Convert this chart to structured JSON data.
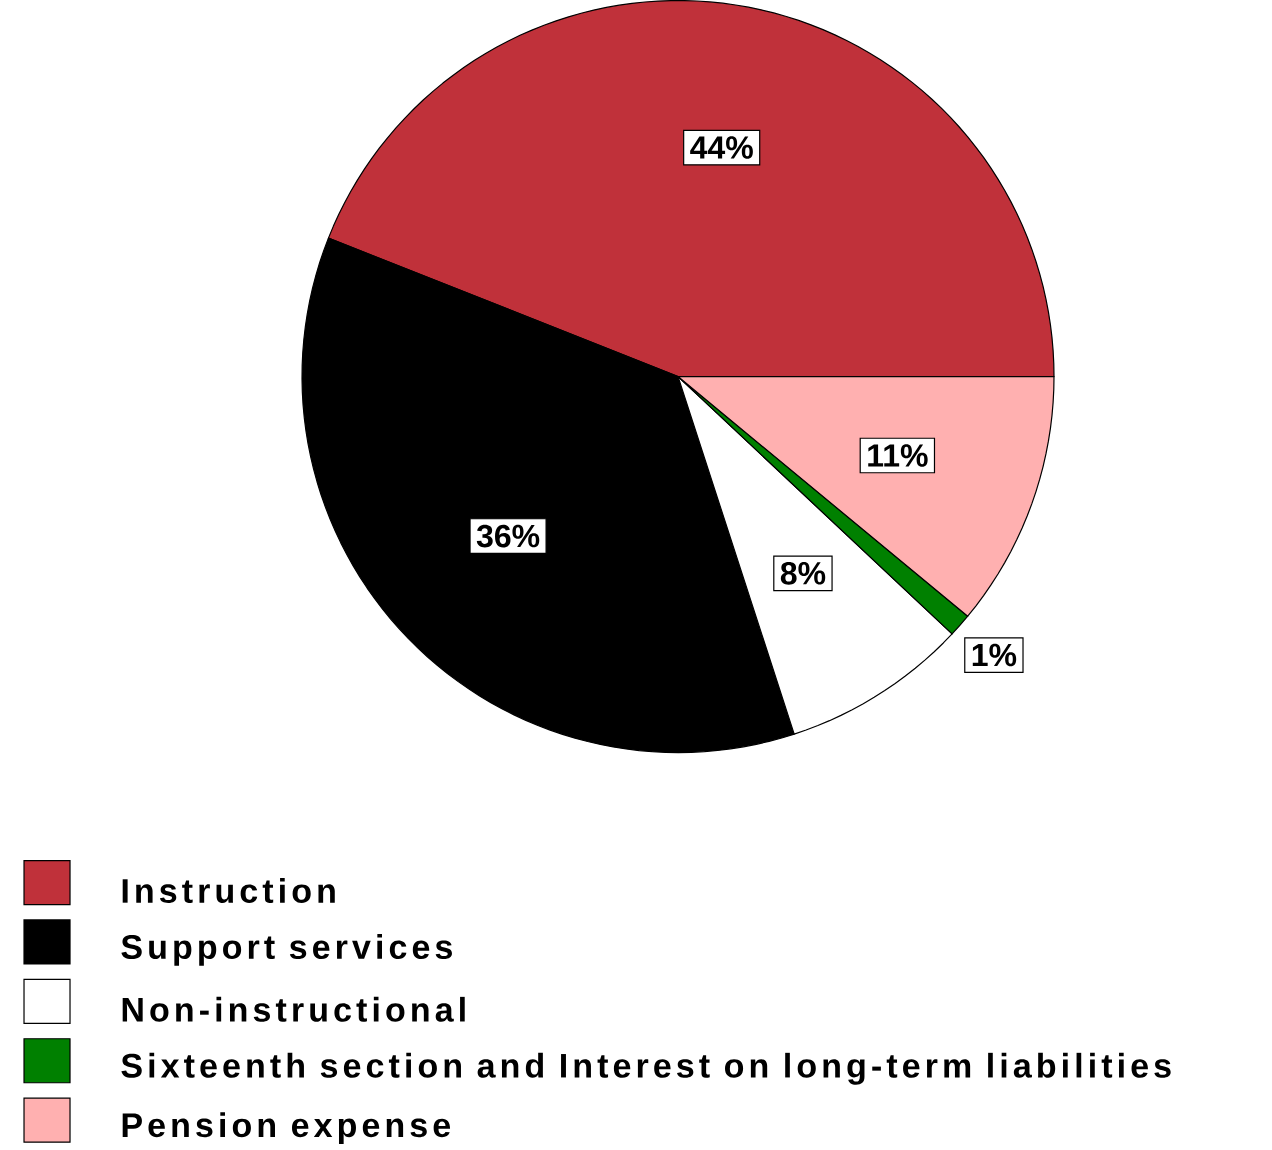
{
  "chart_data": {
    "type": "pie",
    "categories": [
      "Instruction",
      "Support services",
      "Non-instructional",
      "Sixteenth section and Interest on long-term liabilities",
      "Pension expense"
    ],
    "values": [
      44,
      36,
      8,
      1,
      11
    ],
    "colors": [
      "#c0313a",
      "#000000",
      "#ffffff",
      "#008000",
      "#ffb0b0"
    ],
    "value_labels": [
      "44%",
      "36%",
      "8%",
      "1%",
      "11%"
    ],
    "legend": "bottom"
  }
}
